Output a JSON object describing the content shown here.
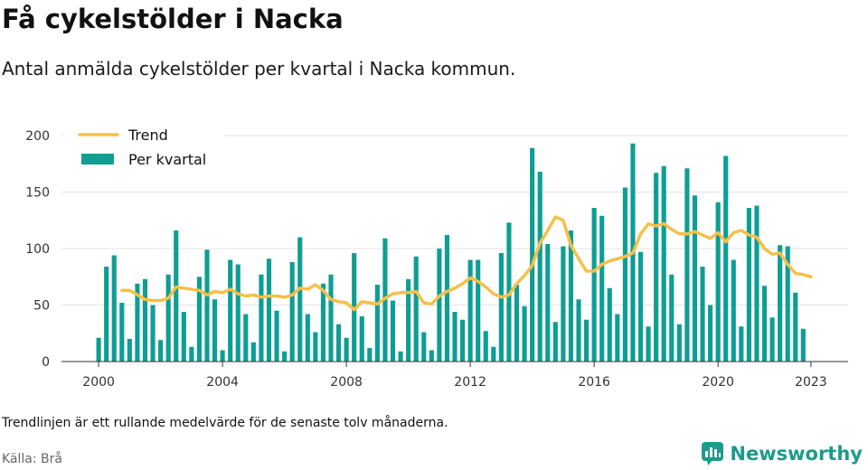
{
  "header": {
    "title": "Få cykelstölder i Nacka",
    "subtitle": "Antal anmälda cykelstölder per kvartal i Nacka kommun."
  },
  "footer": {
    "note": "Trendlinjen är ett rullande medelvärde för de senaste tolv månaderna.",
    "source": "Källa: Brå",
    "brand": "Newsworthy"
  },
  "colors": {
    "bars": "#0e9e93",
    "trend": "#f5c04a",
    "grid": "#e3e3e3",
    "brand": "#1c9b8c"
  },
  "chart_data": {
    "type": "bar",
    "x_start": 2000.0,
    "x_step": 0.25,
    "xlim": [
      1998.8,
      2024.2
    ],
    "ylim": [
      0,
      200
    ],
    "x_ticks": [
      2000,
      2004,
      2008,
      2012,
      2016,
      2020,
      2023
    ],
    "y_ticks": [
      0,
      50,
      100,
      150,
      200
    ],
    "grid": "horizontal",
    "legend": {
      "position": "top-left",
      "entries": [
        {
          "label": "Trend",
          "kind": "line"
        },
        {
          "label": "Per kvartal",
          "kind": "bar"
        }
      ]
    },
    "series": [
      {
        "name": "Per kvartal",
        "kind": "bar",
        "values": [
          21,
          84,
          94,
          52,
          20,
          69,
          73,
          50,
          19,
          77,
          116,
          44,
          13,
          75,
          99,
          55,
          10,
          90,
          86,
          42,
          17,
          77,
          91,
          45,
          9,
          88,
          110,
          42,
          26,
          69,
          77,
          33,
          21,
          96,
          40,
          12,
          68,
          109,
          54,
          9,
          73,
          93,
          26,
          10,
          100,
          112,
          44,
          37,
          90,
          90,
          27,
          13,
          96,
          123,
          68,
          49,
          189,
          168,
          104,
          35,
          102,
          116,
          55,
          37,
          136,
          129,
          65,
          42,
          154,
          193,
          97,
          31,
          167,
          173,
          77,
          33,
          171,
          147,
          84,
          50,
          141,
          182,
          90,
          31,
          136,
          138,
          67,
          39,
          103,
          102,
          61,
          29
        ]
      },
      {
        "name": "Trend",
        "kind": "line",
        "x": [
          2000.75,
          2001.0,
          2001.25,
          2001.5,
          2001.75,
          2002.0,
          2002.25,
          2002.5,
          2002.75,
          2003.0,
          2003.25,
          2003.5,
          2003.75,
          2004.0,
          2004.25,
          2004.5,
          2004.75,
          2005.0,
          2005.25,
          2005.5,
          2005.75,
          2006.0,
          2006.25,
          2006.5,
          2006.75,
          2007.0,
          2007.25,
          2007.5,
          2007.75,
          2008.0,
          2008.25,
          2008.5,
          2008.75,
          2009.0,
          2009.25,
          2009.5,
          2009.75,
          2010.0,
          2010.25,
          2010.5,
          2010.75,
          2011.0,
          2011.25,
          2011.5,
          2011.75,
          2012.0,
          2012.25,
          2012.5,
          2012.75,
          2013.0,
          2013.25,
          2013.5,
          2013.75,
          2014.0,
          2014.25,
          2014.5,
          2014.75,
          2015.0,
          2015.25,
          2015.5,
          2015.75,
          2016.0,
          2016.25,
          2016.5,
          2016.75,
          2017.0,
          2017.25,
          2017.5,
          2017.75,
          2018.0,
          2018.25,
          2018.5,
          2018.75,
          2019.0,
          2019.25,
          2019.5,
          2019.75,
          2020.0,
          2020.25,
          2020.5,
          2020.75,
          2021.0,
          2021.25,
          2021.5,
          2021.75,
          2022.0,
          2022.25,
          2022.5,
          2022.75,
          2023.0
        ],
        "values": [
          63,
          63,
          59,
          55,
          54,
          54,
          56,
          66,
          65,
          64,
          63,
          59,
          62,
          61,
          64,
          60,
          58,
          59,
          57,
          58,
          58,
          57,
          59,
          65,
          64,
          68,
          63,
          55,
          53,
          52,
          46,
          53,
          52,
          51,
          56,
          60,
          61,
          61,
          62,
          52,
          51,
          58,
          62,
          65,
          69,
          74,
          71,
          66,
          60,
          57,
          59,
          69,
          76,
          85,
          105,
          116,
          128,
          125,
          103,
          91,
          80,
          80,
          86,
          89,
          91,
          93,
          96,
          113,
          122,
          120,
          122,
          117,
          113,
          113,
          115,
          112,
          109,
          114,
          106,
          114,
          116,
          112,
          110,
          100,
          95,
          96,
          86,
          78,
          77,
          75
        ]
      }
    ]
  }
}
